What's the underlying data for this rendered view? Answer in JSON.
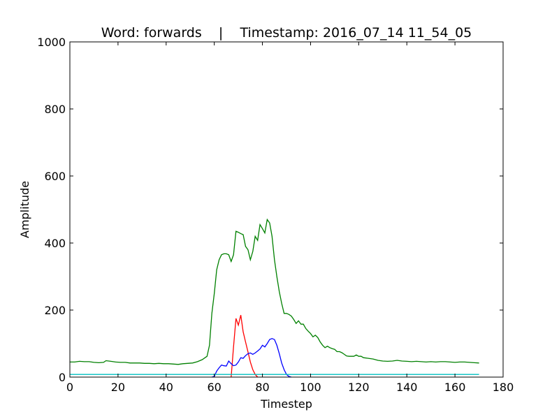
{
  "chart_data": {
    "type": "line",
    "title": "Word: forwards    |    Timestamp: 2016_07_14 11_54_05",
    "xlabel": "Timestep",
    "ylabel": "Amplitude",
    "xlim": [
      0,
      180
    ],
    "ylim": [
      0,
      1000
    ],
    "xticks": [
      0,
      20,
      40,
      60,
      80,
      100,
      120,
      140,
      160,
      180
    ],
    "yticks": [
      0,
      200,
      400,
      600,
      800,
      1000
    ],
    "grid": false,
    "series": [
      {
        "color": "#008000",
        "points": [
          [
            0,
            45
          ],
          [
            2,
            45
          ],
          [
            4,
            47
          ],
          [
            6,
            46
          ],
          [
            8,
            46
          ],
          [
            10,
            44
          ],
          [
            12,
            43
          ],
          [
            14,
            44
          ],
          [
            15,
            49
          ],
          [
            17,
            47
          ],
          [
            19,
            45
          ],
          [
            21,
            44
          ],
          [
            23,
            44
          ],
          [
            25,
            42
          ],
          [
            27,
            42
          ],
          [
            29,
            42
          ],
          [
            31,
            41
          ],
          [
            33,
            41
          ],
          [
            35,
            40
          ],
          [
            37,
            41
          ],
          [
            39,
            40
          ],
          [
            41,
            40
          ],
          [
            43,
            39
          ],
          [
            45,
            38
          ],
          [
            47,
            40
          ],
          [
            49,
            41
          ],
          [
            51,
            42
          ],
          [
            53,
            46
          ],
          [
            55,
            52
          ],
          [
            57,
            62
          ],
          [
            58,
            95
          ],
          [
            59,
            190
          ],
          [
            60,
            250
          ],
          [
            61,
            320
          ],
          [
            62,
            350
          ],
          [
            63,
            365
          ],
          [
            64,
            368
          ],
          [
            65,
            368
          ],
          [
            66,
            365
          ],
          [
            67,
            345
          ],
          [
            68,
            365
          ],
          [
            69,
            435
          ],
          [
            70,
            432
          ],
          [
            71,
            428
          ],
          [
            72,
            425
          ],
          [
            73,
            390
          ],
          [
            74,
            380
          ],
          [
            75,
            350
          ],
          [
            76,
            375
          ],
          [
            77,
            420
          ],
          [
            78,
            408
          ],
          [
            79,
            455
          ],
          [
            80,
            443
          ],
          [
            81,
            430
          ],
          [
            82,
            470
          ],
          [
            83,
            460
          ],
          [
            84,
            420
          ],
          [
            85,
            350
          ],
          [
            86,
            300
          ],
          [
            87,
            255
          ],
          [
            88,
            220
          ],
          [
            89,
            190
          ],
          [
            90,
            190
          ],
          [
            91,
            187
          ],
          [
            92,
            182
          ],
          [
            93,
            172
          ],
          [
            94,
            160
          ],
          [
            95,
            168
          ],
          [
            96,
            158
          ],
          [
            97,
            158
          ],
          [
            98,
            145
          ],
          [
            99,
            137
          ],
          [
            100,
            130
          ],
          [
            101,
            120
          ],
          [
            102,
            125
          ],
          [
            103,
            118
          ],
          [
            104,
            105
          ],
          [
            105,
            95
          ],
          [
            106,
            88
          ],
          [
            107,
            92
          ],
          [
            108,
            88
          ],
          [
            109,
            85
          ],
          [
            110,
            83
          ],
          [
            111,
            76
          ],
          [
            112,
            76
          ],
          [
            113,
            73
          ],
          [
            114,
            68
          ],
          [
            115,
            63
          ],
          [
            116,
            62
          ],
          [
            117,
            62
          ],
          [
            118,
            62
          ],
          [
            119,
            66
          ],
          [
            120,
            62
          ],
          [
            121,
            62
          ],
          [
            122,
            58
          ],
          [
            124,
            56
          ],
          [
            126,
            54
          ],
          [
            128,
            50
          ],
          [
            130,
            48
          ],
          [
            132,
            47
          ],
          [
            134,
            48
          ],
          [
            136,
            50
          ],
          [
            138,
            48
          ],
          [
            140,
            47
          ],
          [
            142,
            46
          ],
          [
            144,
            47
          ],
          [
            146,
            46
          ],
          [
            148,
            45
          ],
          [
            150,
            46
          ],
          [
            152,
            45
          ],
          [
            154,
            46
          ],
          [
            156,
            46
          ],
          [
            158,
            45
          ],
          [
            160,
            44
          ],
          [
            162,
            45
          ],
          [
            164,
            45
          ],
          [
            166,
            44
          ],
          [
            168,
            43
          ],
          [
            170,
            42
          ]
        ]
      },
      {
        "color": "#ff0000",
        "points": [
          [
            67,
            0
          ],
          [
            68,
            90
          ],
          [
            69,
            175
          ],
          [
            70,
            155
          ],
          [
            71,
            185
          ],
          [
            72,
            135
          ],
          [
            73,
            105
          ],
          [
            74,
            75
          ],
          [
            75,
            45
          ],
          [
            76,
            22
          ],
          [
            77,
            8
          ],
          [
            78,
            0
          ]
        ]
      },
      {
        "color": "#0000ff",
        "points": [
          [
            59,
            0
          ],
          [
            60,
            2
          ],
          [
            61,
            18
          ],
          [
            62,
            28
          ],
          [
            63,
            36
          ],
          [
            64,
            34
          ],
          [
            65,
            33
          ],
          [
            66,
            48
          ],
          [
            67,
            40
          ],
          [
            68,
            34
          ],
          [
            69,
            36
          ],
          [
            70,
            45
          ],
          [
            71,
            58
          ],
          [
            72,
            56
          ],
          [
            73,
            64
          ],
          [
            74,
            70
          ],
          [
            75,
            72
          ],
          [
            76,
            68
          ],
          [
            77,
            72
          ],
          [
            78,
            78
          ],
          [
            79,
            84
          ],
          [
            80,
            95
          ],
          [
            81,
            90
          ],
          [
            82,
            100
          ],
          [
            83,
            112
          ],
          [
            84,
            115
          ],
          [
            85,
            112
          ],
          [
            86,
            95
          ],
          [
            87,
            70
          ],
          [
            88,
            42
          ],
          [
            89,
            22
          ],
          [
            90,
            8
          ],
          [
            91,
            2
          ],
          [
            92,
            0
          ]
        ]
      },
      {
        "color": "#00bfbf",
        "points": [
          [
            0,
            8
          ],
          [
            20,
            8
          ],
          [
            40,
            8
          ],
          [
            60,
            8
          ],
          [
            80,
            8
          ],
          [
            100,
            8
          ],
          [
            120,
            8
          ],
          [
            140,
            8
          ],
          [
            160,
            8
          ],
          [
            170,
            8
          ]
        ]
      }
    ]
  }
}
